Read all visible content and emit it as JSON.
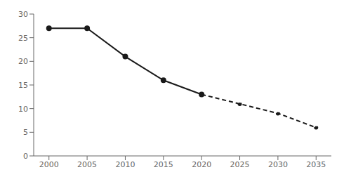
{
  "chart_data": {
    "type": "line",
    "xlim": [
      1998,
      2037
    ],
    "xticks": [
      2000,
      2005,
      2010,
      2015,
      2020,
      2025,
      2030,
      2035
    ],
    "ylim": [
      0,
      30
    ],
    "yticks": [
      0,
      5,
      10,
      15,
      20,
      25,
      30
    ],
    "grid": false,
    "color": "#1a1a1a",
    "series": [
      {
        "x": [
          2000,
          2005,
          2010,
          2015,
          2020
        ],
        "values": [
          27,
          27,
          21,
          16,
          13
        ],
        "line_style": "solid",
        "marker": "circle"
      },
      {
        "x": [
          2020,
          2025,
          2030,
          2035
        ],
        "values": [
          13,
          11,
          9,
          6
        ],
        "line_style": "dashed",
        "marker": "circle"
      }
    ]
  }
}
